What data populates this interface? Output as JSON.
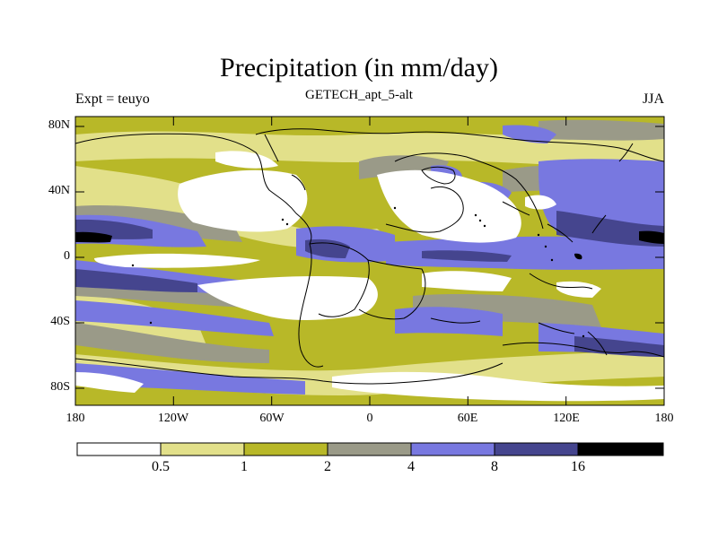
{
  "title": "Precipitation (in mm/day)",
  "subtitle": "GETECH_apt_5-alt",
  "left_string": "Expt = teuyo",
  "right_string": "JJA",
  "y_ticks": [
    "80N",
    "40N",
    "0",
    "40S",
    "80S"
  ],
  "x_ticks": [
    "180",
    "120W",
    "60W",
    "0",
    "60E",
    "120E",
    "180"
  ],
  "colorbar": {
    "levels": [
      "0.5",
      "1",
      "2",
      "4",
      "8",
      "16"
    ],
    "colors": [
      "#ffffff",
      "#e2e08a",
      "#b8b828",
      "#9a9a88",
      "#7878e0",
      "#45458e",
      "#000000"
    ]
  },
  "colors": {
    "white": "#ffffff",
    "light_yellow": "#e2e08a",
    "olive": "#b8b828",
    "grey": "#9a9a88",
    "blue": "#7878e0",
    "dark_blue": "#45458e",
    "black": "#000000"
  }
}
